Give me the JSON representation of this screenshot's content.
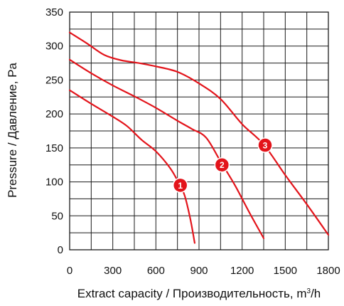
{
  "chart_data": {
    "type": "line",
    "xlabel_main": "Extract capacity / Производительность, m",
    "xlabel_sup": "3",
    "xlabel_tail": "/h",
    "ylabel": "Pressure / Давление, Pa",
    "xlim": [
      0,
      1800
    ],
    "ylim": [
      0,
      350
    ],
    "x_ticks": [
      0,
      300,
      600,
      900,
      1200,
      1500,
      1800
    ],
    "y_ticks": [
      0,
      50,
      100,
      150,
      200,
      250,
      300,
      350
    ],
    "grid": true,
    "series_color": "#e3141b",
    "series": [
      {
        "label": "1",
        "points": [
          [
            0,
            235
          ],
          [
            150,
            215
          ],
          [
            300,
            196
          ],
          [
            400,
            182
          ],
          [
            500,
            162
          ],
          [
            600,
            145
          ],
          [
            700,
            120
          ],
          [
            760,
            98
          ],
          [
            800,
            80
          ],
          [
            840,
            45
          ],
          [
            870,
            10
          ]
        ],
        "marker": [
          770,
          95
        ]
      },
      {
        "label": "2",
        "points": [
          [
            0,
            280
          ],
          [
            150,
            260
          ],
          [
            300,
            242
          ],
          [
            450,
            226
          ],
          [
            600,
            209
          ],
          [
            750,
            190
          ],
          [
            850,
            178
          ],
          [
            950,
            165
          ],
          [
            1050,
            130
          ],
          [
            1150,
            95
          ],
          [
            1250,
            55
          ],
          [
            1350,
            17
          ]
        ],
        "marker": [
          1060,
          125
        ]
      },
      {
        "label": "3",
        "points": [
          [
            0,
            320
          ],
          [
            120,
            304
          ],
          [
            240,
            287
          ],
          [
            360,
            279
          ],
          [
            480,
            275
          ],
          [
            600,
            270
          ],
          [
            750,
            262
          ],
          [
            900,
            245
          ],
          [
            1050,
            222
          ],
          [
            1200,
            185
          ],
          [
            1350,
            155
          ],
          [
            1500,
            110
          ],
          [
            1650,
            67
          ],
          [
            1800,
            22
          ]
        ],
        "marker": [
          1360,
          154
        ]
      }
    ]
  }
}
